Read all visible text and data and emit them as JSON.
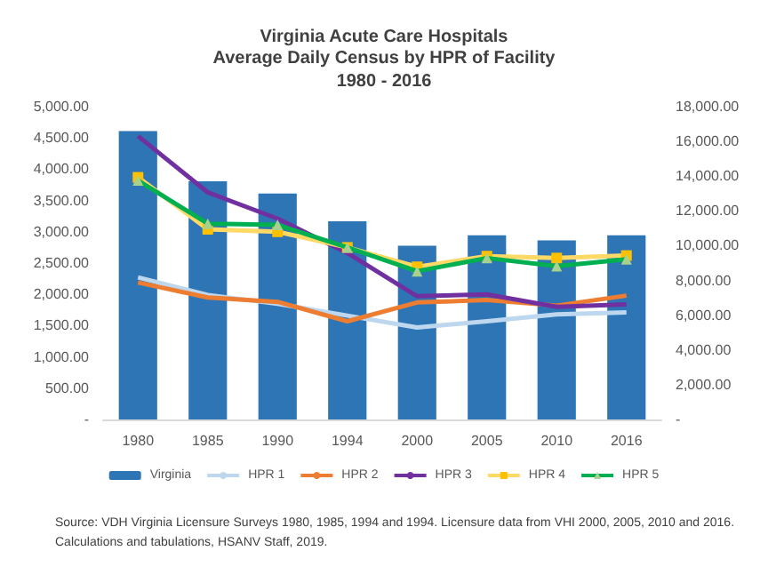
{
  "chart_data": {
    "type": "line",
    "title": "Virginia Acute Care Hospitals\nAverage Daily Census by HPR of Facility",
    "subtitle": "1980 - 2016",
    "categories": [
      "1980",
      "1985",
      "1990",
      "1994",
      "2000",
      "2005",
      "2010",
      "2016"
    ],
    "series": [
      {
        "name": "Virginia",
        "type": "bar",
        "axis": "y2",
        "color": "#2e75b6",
        "values": [
          16600,
          13700,
          13000,
          11400,
          10000,
          10600,
          10300,
          10600
        ]
      },
      {
        "name": "HPR 1",
        "color": "#bdd7ee",
        "marker": "none",
        "values": [
          2270,
          1990,
          1850,
          1660,
          1470,
          1570,
          1680,
          1710
        ]
      },
      {
        "name": "HPR 2",
        "color": "#ed7d31",
        "marker": "none",
        "values": [
          2190,
          1950,
          1880,
          1570,
          1870,
          1910,
          1820,
          1980
        ]
      },
      {
        "name": "HPR 3",
        "color": "#7030a0",
        "marker": "none",
        "values": [
          4530,
          3630,
          3210,
          2660,
          1970,
          2000,
          1800,
          1840
        ]
      },
      {
        "name": "HPR 4",
        "color": "#ffd966",
        "marker": "square",
        "values": [
          3870,
          3040,
          3000,
          2750,
          2440,
          2610,
          2580,
          2620
        ]
      },
      {
        "name": "HPR 5",
        "color": "#00b050",
        "marker": "triangle",
        "values": [
          3820,
          3130,
          3110,
          2750,
          2370,
          2580,
          2450,
          2560
        ]
      }
    ],
    "ylim": [
      0,
      5000
    ],
    "yticks": [
      {
        "value": 0,
        "label": "-"
      },
      {
        "value": 500,
        "label": "500.00"
      },
      {
        "value": 1000,
        "label": "1,000.00"
      },
      {
        "value": 1500,
        "label": "1,500.00"
      },
      {
        "value": 2000,
        "label": "2,000.00"
      },
      {
        "value": 2500,
        "label": "2,500.00"
      },
      {
        "value": 3000,
        "label": "3,000.00"
      },
      {
        "value": 3500,
        "label": "3,500.00"
      },
      {
        "value": 4000,
        "label": "4,000.00"
      },
      {
        "value": 4500,
        "label": "4,500.00"
      },
      {
        "value": 5000,
        "label": "5,000.00"
      }
    ],
    "y2lim": [
      0,
      18000
    ],
    "y2ticks": [
      {
        "value": 0,
        "label": "-"
      },
      {
        "value": 2000,
        "label": "2,000.00"
      },
      {
        "value": 4000,
        "label": "4,000.00"
      },
      {
        "value": 6000,
        "label": "6,000.00"
      },
      {
        "value": 8000,
        "label": "8,000.00"
      },
      {
        "value": 10000,
        "label": "10,000.00"
      },
      {
        "value": 12000,
        "label": "12,000.00"
      },
      {
        "value": 14000,
        "label": "14,000.00"
      },
      {
        "value": 16000,
        "label": "16,000.00"
      },
      {
        "value": 18000,
        "label": "18,000.00"
      }
    ],
    "legend": "bottom",
    "annotations": [
      "Source: VDH Virginia Licensure Surveys 1980, 1985, 1994 and 1994. Licensure data from VHI 2000, 2005, 2010 and 2016. Calculations and tabulations, HSANV Staff, 2019."
    ]
  }
}
